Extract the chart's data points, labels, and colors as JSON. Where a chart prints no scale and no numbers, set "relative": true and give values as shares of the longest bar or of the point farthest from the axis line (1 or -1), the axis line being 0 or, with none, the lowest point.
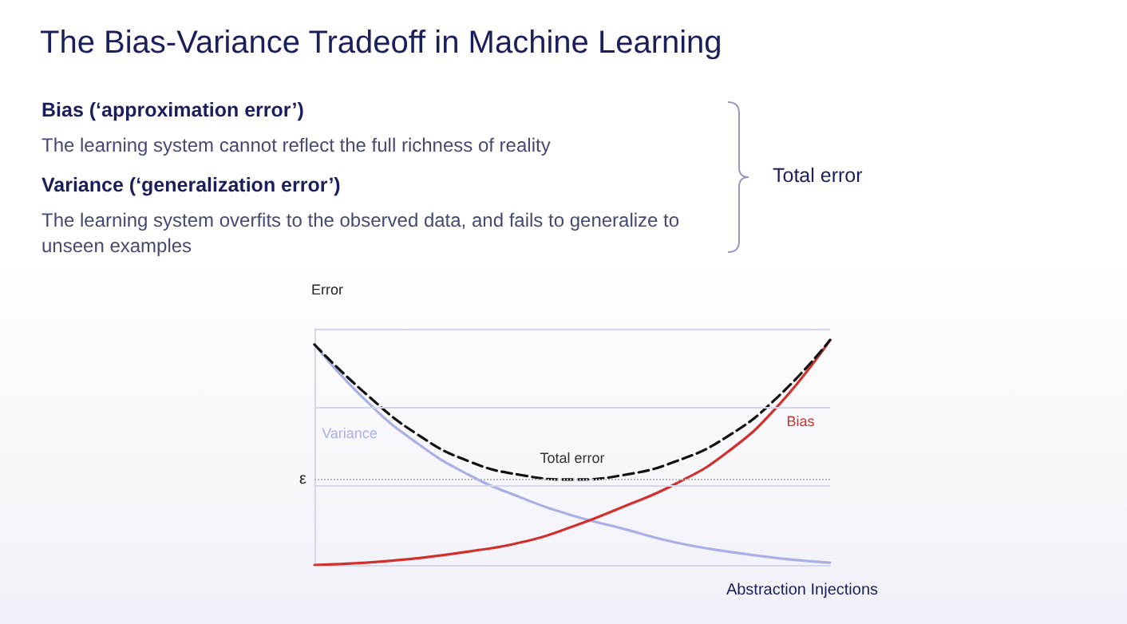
{
  "chart_data": {
    "type": "line",
    "title": "The Bias-Variance Tradeoff in Machine Learning",
    "annotations": [
      "Bias (‘approximation error’)",
      "The learning system cannot reflect the full richness of reality",
      "Variance (‘generalization error’)",
      "The learning system overfits to the observed data, and fails to generalize to unseen examples",
      "Total error"
    ],
    "xlabel": "Abstraction Injections",
    "ylabel": "Error",
    "relative": true,
    "marker": "none",
    "legend": false,
    "categories": [
      null,
      null,
      null,
      null,
      null,
      null,
      null,
      null,
      null,
      null,
      null
    ],
    "series": [
      {
        "name": "Variance",
        "color": "#aab0e6",
        "line_style": "solid",
        "values": [
          0.98,
          0.73,
          0.54,
          0.4,
          0.3,
          0.22,
          0.16,
          0.1,
          0.06,
          0.03,
          0.01
        ]
      },
      {
        "name": "Bias",
        "color": "#d0312d",
        "line_style": "solid",
        "values": [
          0.0,
          0.01,
          0.03,
          0.06,
          0.1,
          0.17,
          0.26,
          0.36,
          0.5,
          0.71,
          1.0
        ]
      },
      {
        "name": "Total error",
        "color": "#111111",
        "line_style": "dashed",
        "values": [
          0.98,
          0.76,
          0.58,
          0.46,
          0.4,
          0.38,
          0.4,
          0.46,
          0.57,
          0.75,
          1.0
        ]
      }
    ],
    "ref_lines": [
      {
        "axis": "y",
        "value": 0.38,
        "label": "ε",
        "line_style": "dotted",
        "color": "#bbbbbb"
      },
      {
        "axis": "y",
        "value": 0.35,
        "label": null,
        "line_style": "solid",
        "color": "#d6d6ea"
      },
      {
        "axis": "y",
        "value": 0.7,
        "label": null,
        "line_style": "solid",
        "color": "#d6d6ea"
      },
      {
        "axis": "y",
        "value": 1.05,
        "label": null,
        "line_style": "solid",
        "color": "#d6d6ea"
      }
    ]
  }
}
